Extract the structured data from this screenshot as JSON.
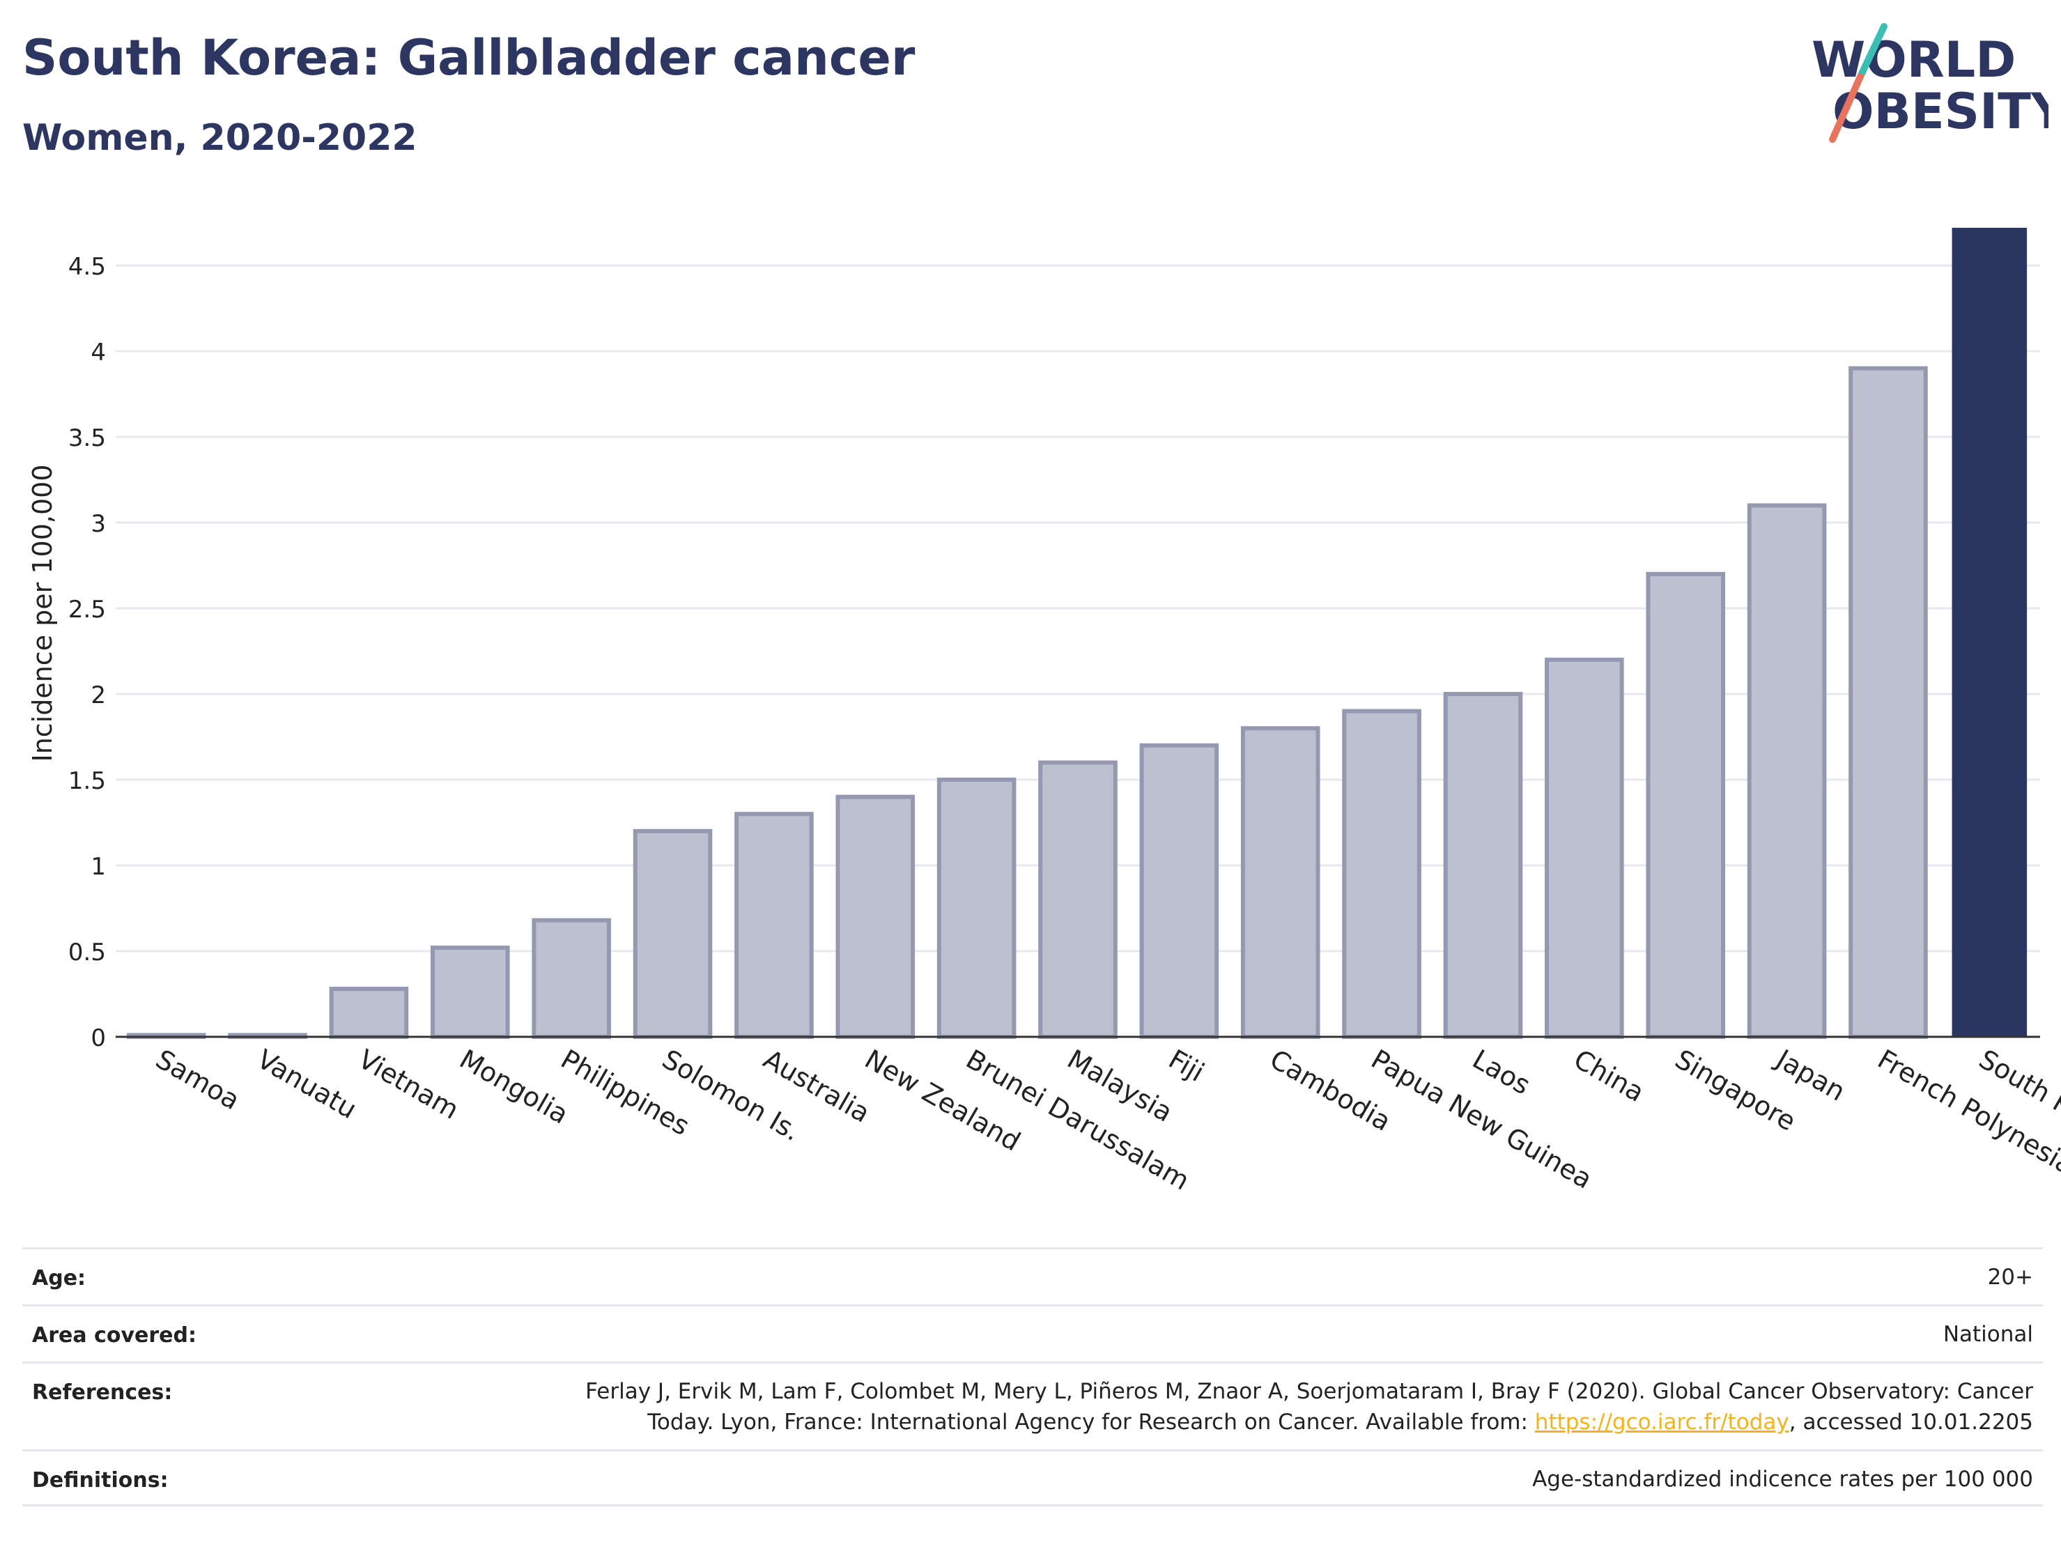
{
  "header": {
    "title": "South Korea: Gallbladder cancer",
    "subtitle": "Women, 2020-2022"
  },
  "logo": {
    "line1": "WORLD",
    "line2": "OBESITY",
    "text_color": "#2d3561",
    "slash_color_top": "#3bbfb5",
    "slash_color_bottom": "#e8735f"
  },
  "chart_data": {
    "type": "bar",
    "ylabel": "Incidence per 100,000",
    "xlabel": "",
    "ylim": [
      0,
      4.75
    ],
    "yticks": [
      0,
      0.5,
      1,
      1.5,
      2,
      2.5,
      3,
      3.5,
      4,
      4.5
    ],
    "ytick_labels": [
      "0",
      "0.5",
      "1",
      "1.5",
      "2",
      "2.5",
      "3",
      "3.5",
      "4",
      "4.5"
    ],
    "grid": true,
    "categories": [
      "Samoa",
      "Vanuatu",
      "Vietnam",
      "Mongolia",
      "Philippines",
      "Solomon Is.",
      "Australia",
      "New Zealand",
      "Brunei Darussalam",
      "Malaysia",
      "Fiji",
      "Cambodia",
      "Papua New Guinea",
      "Laos",
      "China",
      "Singapore",
      "Japan",
      "French Polynesia",
      "South Korea"
    ],
    "values": [
      0.01,
      0.01,
      0.28,
      0.52,
      0.68,
      1.2,
      1.3,
      1.4,
      1.5,
      1.6,
      1.7,
      1.8,
      1.9,
      2.0,
      2.2,
      2.7,
      3.1,
      3.9,
      4.72
    ],
    "highlight": "South Korea",
    "colors": {
      "bar_fill": "#bdc0ce",
      "bar_stroke": "#9498b0",
      "highlight_fill": "#2a3560",
      "grid": "#e6e8ee",
      "axis": "#333333",
      "text": "#222222"
    }
  },
  "meta": [
    {
      "label": "Age:",
      "value": "20+"
    },
    {
      "label": "Area covered:",
      "value": "National"
    },
    {
      "label": "References:",
      "value_line1": "Ferlay J, Ervik M, Lam F, Colombet M, Mery L, Piñeros M, Znaor A, Soerjomataram I, Bray F (2020). Global Cancer Observatory: Cancer",
      "value_line2_pre": "Today. Lyon, France: International Agency for Research on Cancer. Available from: ",
      "link": "https://gco.iarc.fr/today",
      "value_line2_post": ", accessed 10.01.2205"
    },
    {
      "label": "Definitions:",
      "value": "Age-standardized indicence rates per 100 000"
    }
  ]
}
